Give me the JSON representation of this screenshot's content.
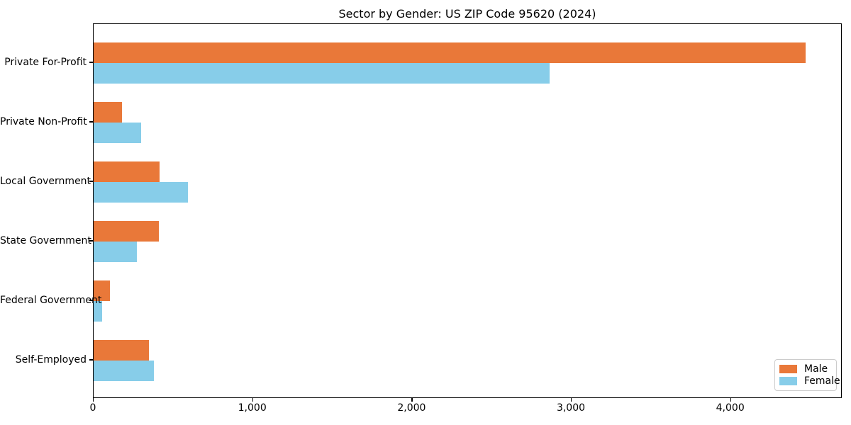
{
  "chart_data": {
    "type": "bar",
    "orientation": "horizontal",
    "title": "Sector by Gender: US ZIP Code 95620 (2024)",
    "categories": [
      "Private For-Profit",
      "Private Non-Profit",
      "Local Government",
      "State Government",
      "Federal Government",
      "Self-Employed"
    ],
    "series": [
      {
        "name": "Male",
        "color": "#E97839",
        "values": [
          4470,
          180,
          415,
          410,
          100,
          345
        ]
      },
      {
        "name": "Female",
        "color": "#87CDE9",
        "values": [
          2860,
          300,
          590,
          270,
          55,
          380
        ]
      }
    ],
    "xlabel": "",
    "ylabel": "",
    "xlim": [
      0,
      4700
    ],
    "xticks": [
      0,
      1000,
      2000,
      3000,
      4000
    ],
    "xtick_labels": [
      "0",
      "1,000",
      "2,000",
      "3,000",
      "4,000"
    ],
    "grid": false,
    "legend_position": "lower right",
    "background_color": "#ffffff",
    "spine_color": "#000000"
  }
}
